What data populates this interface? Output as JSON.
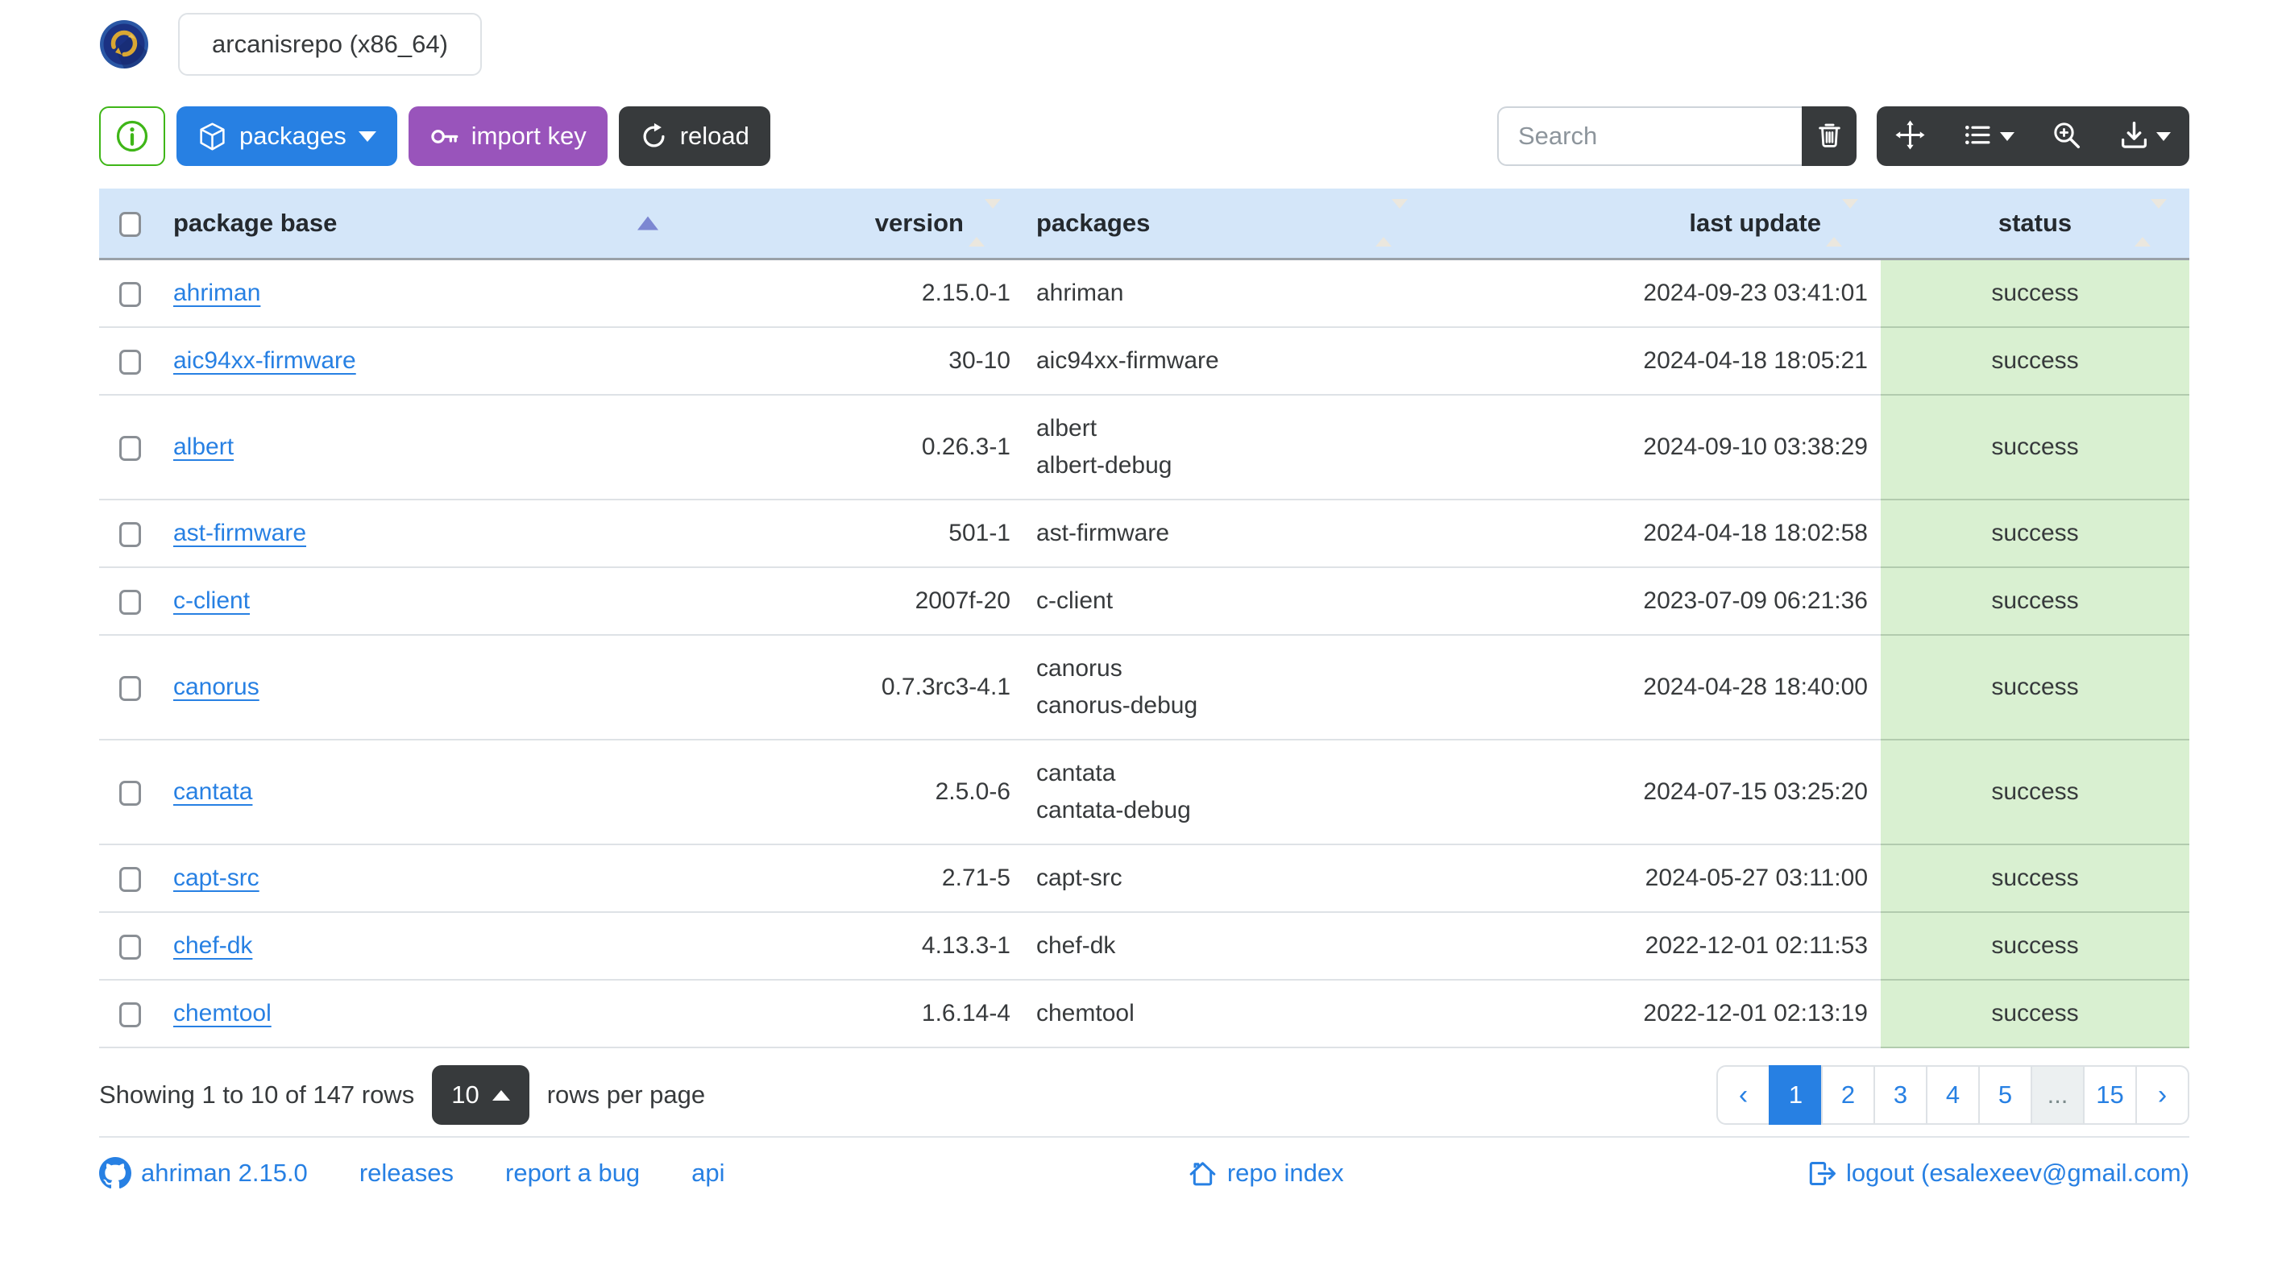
{
  "header": {
    "tab_label": "arcanisrepo (x86_64)"
  },
  "toolbar": {
    "packages_label": "packages",
    "import_key_label": "import key",
    "reload_label": "reload",
    "search_placeholder": "Search"
  },
  "table": {
    "columns": [
      "package base",
      "version",
      "packages",
      "last update",
      "status"
    ],
    "sort_column": "package base",
    "sort_direction": "asc",
    "rows": [
      {
        "package_base": "ahriman",
        "version": "2.15.0-1",
        "packages": [
          "ahriman"
        ],
        "last_update": "2024-09-23 03:41:01",
        "status": "success"
      },
      {
        "package_base": "aic94xx-firmware",
        "version": "30-10",
        "packages": [
          "aic94xx-firmware"
        ],
        "last_update": "2024-04-18 18:05:21",
        "status": "success"
      },
      {
        "package_base": "albert",
        "version": "0.26.3-1",
        "packages": [
          "albert",
          "albert-debug"
        ],
        "last_update": "2024-09-10 03:38:29",
        "status": "success"
      },
      {
        "package_base": "ast-firmware",
        "version": "501-1",
        "packages": [
          "ast-firmware"
        ],
        "last_update": "2024-04-18 18:02:58",
        "status": "success"
      },
      {
        "package_base": "c-client",
        "version": "2007f-20",
        "packages": [
          "c-client"
        ],
        "last_update": "2023-07-09 06:21:36",
        "status": "success"
      },
      {
        "package_base": "canorus",
        "version": "0.7.3rc3-4.1",
        "packages": [
          "canorus",
          "canorus-debug"
        ],
        "last_update": "2024-04-28 18:40:00",
        "status": "success"
      },
      {
        "package_base": "cantata",
        "version": "2.5.0-6",
        "packages": [
          "cantata",
          "cantata-debug"
        ],
        "last_update": "2024-07-15 03:25:20",
        "status": "success"
      },
      {
        "package_base": "capt-src",
        "version": "2.71-5",
        "packages": [
          "capt-src"
        ],
        "last_update": "2024-05-27 03:11:00",
        "status": "success"
      },
      {
        "package_base": "chef-dk",
        "version": "4.13.3-1",
        "packages": [
          "chef-dk"
        ],
        "last_update": "2022-12-01 02:11:53",
        "status": "success"
      },
      {
        "package_base": "chemtool",
        "version": "1.6.14-4",
        "packages": [
          "chemtool"
        ],
        "last_update": "2022-12-01 02:13:19",
        "status": "success"
      }
    ]
  },
  "pagination": {
    "summary": "Showing 1 to 10 of 147 rows",
    "page_size": "10",
    "rows_per_page_label": "rows per page",
    "prev_label": "‹",
    "next_label": "›",
    "pages": [
      "1",
      "2",
      "3",
      "4",
      "5",
      "...",
      "15"
    ],
    "active_page": "1"
  },
  "footer": {
    "version_link": "ahriman 2.15.0",
    "releases_link": "releases",
    "report_bug_link": "report a bug",
    "api_link": "api",
    "repo_index_link": "repo index",
    "logout_link": "logout (esalexeev@gmail.com)"
  },
  "icons": {
    "info": "info-circle-icon",
    "packages": "box-icon",
    "import_key": "key-icon",
    "reload": "arrow-clockwise-icon",
    "clear_search": "trash-icon",
    "fullscreen": "arrows-move-icon",
    "columns": "list-columns-icon",
    "toggle_view": "zoom-in-icon",
    "export": "download-icon",
    "version": "github-icon",
    "repo_index": "house-icon",
    "logout": "box-arrow-right-icon"
  },
  "colors": {
    "primary_blue": "#2780e3",
    "purple": "#9954bb",
    "dark": "#373a3c",
    "success_green": "#3fb618",
    "table_header_bg": "#d4e6f9",
    "status_success_bg": "#d9f0d1",
    "link": "#2780e3",
    "sort_arrow": "#7c87d2"
  }
}
